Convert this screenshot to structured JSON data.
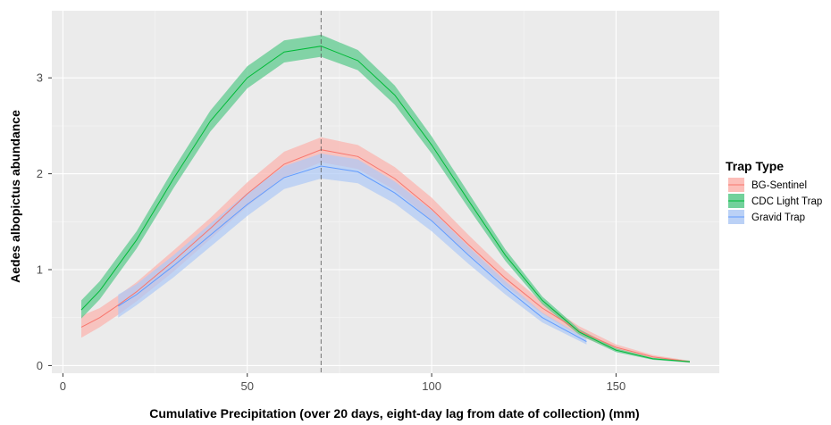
{
  "chart_data": {
    "type": "line",
    "xlabel": "Cumulative Precipitation (over 20 days, eight-day lag from date of collection) (mm)",
    "ylabel": "Aedes albopictus abundance",
    "xlim": [
      -3,
      178
    ],
    "ylim": [
      -0.08,
      3.7
    ],
    "x_ticks": [
      0,
      50,
      100,
      150
    ],
    "y_ticks": [
      0,
      1,
      2,
      3
    ],
    "grid": true,
    "reference_line": {
      "x": 70,
      "style": "dashed"
    },
    "legend": {
      "title": "Trap Type",
      "placement": "right"
    },
    "series": [
      {
        "name": "BG-Sentinel",
        "color": "#F8766D",
        "fill": "#FBB3AD",
        "x": [
          5,
          10,
          15,
          20,
          30,
          40,
          50,
          60,
          70,
          80,
          90,
          100,
          110,
          120,
          130,
          140,
          150,
          160,
          170
        ],
        "y": [
          0.4,
          0.5,
          0.63,
          0.77,
          1.09,
          1.43,
          1.79,
          2.1,
          2.25,
          2.18,
          1.95,
          1.63,
          1.26,
          0.91,
          0.6,
          0.36,
          0.19,
          0.09,
          0.04
        ],
        "lower": [
          0.29,
          0.4,
          0.53,
          0.67,
          0.98,
          1.32,
          1.66,
          1.96,
          2.12,
          2.05,
          1.83,
          1.51,
          1.16,
          0.83,
          0.54,
          0.31,
          0.16,
          0.07,
          0.03
        ],
        "upper": [
          0.52,
          0.6,
          0.73,
          0.87,
          1.2,
          1.54,
          1.91,
          2.23,
          2.38,
          2.3,
          2.07,
          1.75,
          1.36,
          0.99,
          0.66,
          0.41,
          0.22,
          0.11,
          0.05
        ]
      },
      {
        "name": "CDC Light Trap",
        "color": "#00BA38",
        "fill": "#59C98A",
        "x": [
          5,
          10,
          20,
          30,
          40,
          50,
          60,
          70,
          80,
          90,
          100,
          110,
          120,
          130,
          140,
          150,
          160,
          170
        ],
        "y": [
          0.58,
          0.78,
          1.31,
          1.95,
          2.55,
          3.0,
          3.27,
          3.33,
          3.18,
          2.82,
          2.3,
          1.72,
          1.15,
          0.68,
          0.35,
          0.16,
          0.07,
          0.04
        ],
        "lower": [
          0.49,
          0.69,
          1.22,
          1.85,
          2.44,
          2.89,
          3.16,
          3.22,
          3.08,
          2.72,
          2.21,
          1.64,
          1.09,
          0.64,
          0.32,
          0.14,
          0.06,
          0.03
        ],
        "upper": [
          0.68,
          0.88,
          1.4,
          2.05,
          2.66,
          3.12,
          3.39,
          3.45,
          3.29,
          2.92,
          2.39,
          1.8,
          1.21,
          0.72,
          0.38,
          0.18,
          0.08,
          0.05
        ]
      },
      {
        "name": "Gravid Trap",
        "color": "#619CFF",
        "fill": "#AFC9F5",
        "x": [
          15,
          20,
          30,
          40,
          50,
          60,
          70,
          80,
          90,
          100,
          110,
          120,
          130,
          142
        ],
        "y": [
          0.62,
          0.74,
          1.04,
          1.36,
          1.68,
          1.96,
          2.08,
          2.02,
          1.8,
          1.51,
          1.15,
          0.81,
          0.5,
          0.25
        ],
        "lower": [
          0.5,
          0.63,
          0.92,
          1.24,
          1.56,
          1.84,
          1.95,
          1.9,
          1.69,
          1.4,
          1.06,
          0.74,
          0.45,
          0.22
        ],
        "upper": [
          0.74,
          0.85,
          1.15,
          1.48,
          1.8,
          2.08,
          2.21,
          2.15,
          1.92,
          1.62,
          1.24,
          0.88,
          0.55,
          0.28
        ]
      }
    ]
  }
}
